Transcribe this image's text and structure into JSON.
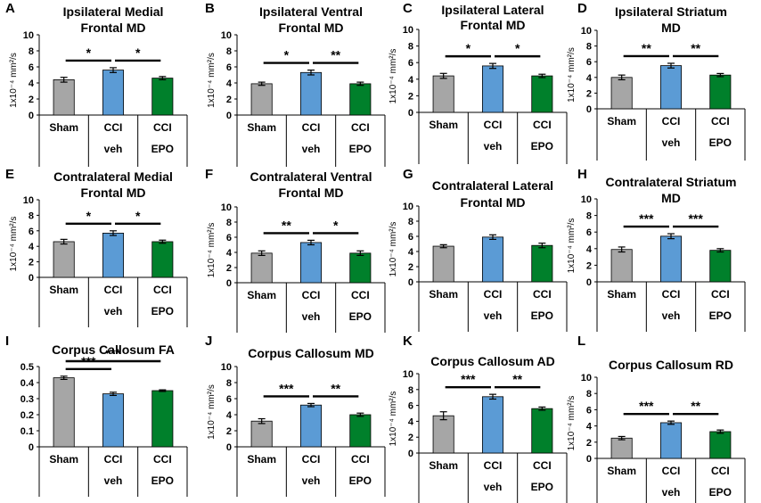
{
  "figure": {
    "colors": {
      "Sham": "#a6a6a6",
      "CCI veh": "#5b9bd5",
      "CCI EPO": "#00802b"
    },
    "panels": [
      {
        "letter": "A",
        "title_lines": [
          "Ipsilateral Medial",
          "Frontal  MD"
        ],
        "ylabel": "1x10⁻⁴ mm²/s",
        "ylim": [
          0,
          10
        ],
        "yticks": [
          0,
          2,
          4,
          6,
          8,
          10
        ],
        "categories": [
          [
            "Sham"
          ],
          [
            "CCI",
            "veh"
          ],
          [
            "CCI",
            "EPO"
          ]
        ],
        "values": [
          4.4,
          5.6,
          4.6
        ],
        "errors": [
          0.3,
          0.3,
          0.2
        ],
        "sig": [
          {
            "from": 0,
            "to": 1,
            "label": "*",
            "level": 1
          },
          {
            "from": 1,
            "to": 2,
            "label": "*",
            "level": 1
          }
        ]
      },
      {
        "letter": "B",
        "title_lines": [
          "Ipsilateral Ventral",
          "Frontal  MD"
        ],
        "ylabel": "1x10⁻⁴ mm²/s",
        "ylim": [
          0,
          10
        ],
        "yticks": [
          0,
          2,
          4,
          6,
          8,
          10
        ],
        "categories": [
          [
            "Sham"
          ],
          [
            "CCI",
            "veh"
          ],
          [
            "CCI",
            "EPO"
          ]
        ],
        "values": [
          3.9,
          5.3,
          3.9
        ],
        "errors": [
          0.2,
          0.3,
          0.2
        ],
        "sig": [
          {
            "from": 0,
            "to": 1,
            "label": "*",
            "level": 1
          },
          {
            "from": 1,
            "to": 2,
            "label": "**",
            "level": 1
          }
        ]
      },
      {
        "letter": "C",
        "title_lines": [
          "Ipsilateral Lateral",
          "Frontal MD"
        ],
        "ylabel": "1x10⁻⁴ mm²/s",
        "ylim": [
          0,
          10
        ],
        "yticks": [
          0,
          2,
          4,
          6,
          8,
          10
        ],
        "categories": [
          [
            "Sham"
          ],
          [
            "CCI",
            "veh"
          ],
          [
            "CCI",
            "EPO"
          ]
        ],
        "values": [
          4.4,
          5.6,
          4.4
        ],
        "errors": [
          0.3,
          0.3,
          0.2
        ],
        "sig": [
          {
            "from": 0,
            "to": 1,
            "label": "*",
            "level": 1
          },
          {
            "from": 1,
            "to": 2,
            "label": "*",
            "level": 1
          }
        ]
      },
      {
        "letter": "D",
        "title_lines": [
          "Ipsilateral Striatum",
          "MD"
        ],
        "ylabel": "1x10⁻⁴ mm²/s",
        "ylim": [
          0,
          10
        ],
        "yticks": [
          0,
          2,
          4,
          6,
          8,
          10
        ],
        "categories": [
          [
            "Sham"
          ],
          [
            "CCI",
            "veh"
          ],
          [
            "CCI",
            "EPO"
          ]
        ],
        "values": [
          4.0,
          5.5,
          4.3
        ],
        "errors": [
          0.3,
          0.3,
          0.2
        ],
        "sig": [
          {
            "from": 0,
            "to": 1,
            "label": "**",
            "level": 1
          },
          {
            "from": 1,
            "to": 2,
            "label": "**",
            "level": 1
          }
        ]
      },
      {
        "letter": "E",
        "title_lines": [
          "Contralateral Medial",
          "Frontal  MD"
        ],
        "ylabel": "1x10⁻⁴ mm²/s",
        "ylim": [
          0,
          10
        ],
        "yticks": [
          0,
          2,
          4,
          6,
          8,
          10
        ],
        "categories": [
          [
            "Sham"
          ],
          [
            "CCI",
            "veh"
          ],
          [
            "CCI",
            "EPO"
          ]
        ],
        "values": [
          4.6,
          5.7,
          4.6
        ],
        "errors": [
          0.3,
          0.3,
          0.2
        ],
        "sig": [
          {
            "from": 0,
            "to": 1,
            "label": "*",
            "level": 1
          },
          {
            "from": 1,
            "to": 2,
            "label": "*",
            "level": 1
          }
        ]
      },
      {
        "letter": "F",
        "title_lines": [
          "Contralateral Ventral",
          "Frontal  MD"
        ],
        "ylabel": "1x10⁻⁴ mm²/s",
        "ylim": [
          0,
          10
        ],
        "yticks": [
          0,
          2,
          4,
          6,
          8,
          10
        ],
        "categories": [
          [
            "Sham"
          ],
          [
            "CCI",
            "veh"
          ],
          [
            "CCI",
            "EPO"
          ]
        ],
        "values": [
          3.9,
          5.3,
          3.9
        ],
        "errors": [
          0.3,
          0.3,
          0.3
        ],
        "sig": [
          {
            "from": 0,
            "to": 1,
            "label": "**",
            "level": 1
          },
          {
            "from": 1,
            "to": 2,
            "label": "*",
            "level": 1
          }
        ]
      },
      {
        "letter": "G",
        "title_lines": [
          "Contralateral Lateral",
          "Frontal  MD"
        ],
        "ylabel": "1x10⁻⁴ mm²/s",
        "ylim": [
          0,
          10
        ],
        "yticks": [
          0,
          2,
          4,
          6,
          8,
          10
        ],
        "categories": [
          [
            "Sham"
          ],
          [
            "CCI",
            "veh"
          ],
          [
            "CCI",
            "EPO"
          ]
        ],
        "values": [
          4.7,
          5.9,
          4.8
        ],
        "errors": [
          0.2,
          0.3,
          0.3
        ],
        "sig": []
      },
      {
        "letter": "H",
        "title_lines": [
          "Contralateral Striatum",
          "MD"
        ],
        "ylabel": "1x10⁻⁴ mm²/s",
        "ylim": [
          0,
          10
        ],
        "yticks": [
          0,
          2,
          4,
          6,
          8,
          10
        ],
        "categories": [
          [
            "Sham"
          ],
          [
            "CCI",
            "veh"
          ],
          [
            "CCI",
            "EPO"
          ]
        ],
        "values": [
          3.9,
          5.5,
          3.8
        ],
        "errors": [
          0.3,
          0.3,
          0.2
        ],
        "sig": [
          {
            "from": 0,
            "to": 1,
            "label": "***",
            "level": 1
          },
          {
            "from": 1,
            "to": 2,
            "label": "***",
            "level": 1
          }
        ]
      },
      {
        "letter": "I",
        "title_lines": [
          "Corpus Callosum FA"
        ],
        "ylabel": "",
        "ylim": [
          0,
          0.5
        ],
        "yticks": [
          "0",
          "0.1",
          "0.2",
          "0.3",
          "0.4",
          "0.5"
        ],
        "categories": [
          [
            "Sham"
          ],
          [
            "CCI",
            "veh"
          ],
          [
            "CCI",
            "EPO"
          ]
        ],
        "values": [
          0.43,
          0.33,
          0.35
        ],
        "errors": [
          0.01,
          0.01,
          0.005
        ],
        "sig": [
          {
            "from": 0,
            "to": 1,
            "label": "***",
            "level": 1
          },
          {
            "from": 0,
            "to": 2,
            "label": "***",
            "level": 2
          }
        ]
      },
      {
        "letter": "J",
        "title_lines": [
          "Corpus Callosum MD"
        ],
        "ylabel": "1x10⁻⁴ mm²/s",
        "ylim": [
          0,
          10
        ],
        "yticks": [
          0,
          2,
          4,
          6,
          8,
          10
        ],
        "categories": [
          [
            "Sham"
          ],
          [
            "CCI",
            "veh"
          ],
          [
            "CCI",
            "EPO"
          ]
        ],
        "values": [
          3.2,
          5.2,
          4.0
        ],
        "errors": [
          0.3,
          0.2,
          0.2
        ],
        "sig": [
          {
            "from": 0,
            "to": 1,
            "label": "***",
            "level": 1
          },
          {
            "from": 1,
            "to": 2,
            "label": "**",
            "level": 1
          }
        ]
      },
      {
        "letter": "K",
        "title_lines": [
          "Corpus Callosum  AD"
        ],
        "ylabel": "1x10⁻⁴ mm²/s",
        "ylim": [
          0,
          10
        ],
        "yticks": [
          0,
          2,
          4,
          6,
          8,
          10
        ],
        "categories": [
          [
            "Sham"
          ],
          [
            "CCI",
            "veh"
          ],
          [
            "CCI",
            "EPO"
          ]
        ],
        "values": [
          4.7,
          7.1,
          5.6
        ],
        "errors": [
          0.5,
          0.3,
          0.2
        ],
        "sig": [
          {
            "from": 0,
            "to": 1,
            "label": "***",
            "level": 1
          },
          {
            "from": 1,
            "to": 2,
            "label": "**",
            "level": 1
          }
        ]
      },
      {
        "letter": "L",
        "title_lines": [
          "Corpus Callosum RD"
        ],
        "ylabel": "1x10⁻⁴ mm²/s",
        "ylim": [
          0,
          10
        ],
        "yticks": [
          0,
          2,
          4,
          6,
          8,
          10
        ],
        "categories": [
          [
            "Sham"
          ],
          [
            "CCI",
            "veh"
          ],
          [
            "CCI",
            "EPO"
          ]
        ],
        "values": [
          2.5,
          4.4,
          3.3
        ],
        "errors": [
          0.2,
          0.2,
          0.2
        ],
        "sig": [
          {
            "from": 0,
            "to": 1,
            "label": "***",
            "level": 1
          },
          {
            "from": 1,
            "to": 2,
            "label": "**",
            "level": 1
          }
        ]
      }
    ]
  },
  "chart_data": [
    {
      "type": "bar",
      "panel": "A",
      "title": "Ipsilateral Medial Frontal  MD",
      "ylabel": "1x10⁻⁴ mm²/s",
      "ylim": [
        0,
        10
      ],
      "categories": [
        "Sham",
        "CCI veh",
        "CCI EPO"
      ],
      "values": [
        4.4,
        5.6,
        4.6
      ]
    },
    {
      "type": "bar",
      "panel": "B",
      "title": "Ipsilateral Ventral Frontal  MD",
      "ylabel": "1x10⁻⁴ mm²/s",
      "ylim": [
        0,
        10
      ],
      "categories": [
        "Sham",
        "CCI veh",
        "CCI EPO"
      ],
      "values": [
        3.9,
        5.3,
        3.9
      ]
    },
    {
      "type": "bar",
      "panel": "C",
      "title": "Ipsilateral Lateral Frontal MD",
      "ylabel": "1x10⁻⁴ mm²/s",
      "ylim": [
        0,
        10
      ],
      "categories": [
        "Sham",
        "CCI veh",
        "CCI EPO"
      ],
      "values": [
        4.4,
        5.6,
        4.4
      ]
    },
    {
      "type": "bar",
      "panel": "D",
      "title": "Ipsilateral Striatum MD",
      "ylabel": "1x10⁻⁴ mm²/s",
      "ylim": [
        0,
        10
      ],
      "categories": [
        "Sham",
        "CCI veh",
        "CCI EPO"
      ],
      "values": [
        4.0,
        5.5,
        4.3
      ]
    },
    {
      "type": "bar",
      "panel": "E",
      "title": "Contralateral Medial Frontal  MD",
      "ylabel": "1x10⁻⁴ mm²/s",
      "ylim": [
        0,
        10
      ],
      "categories": [
        "Sham",
        "CCI veh",
        "CCI EPO"
      ],
      "values": [
        4.6,
        5.7,
        4.6
      ]
    },
    {
      "type": "bar",
      "panel": "F",
      "title": "Contralateral Ventral Frontal  MD",
      "ylabel": "1x10⁻⁴ mm²/s",
      "ylim": [
        0,
        10
      ],
      "categories": [
        "Sham",
        "CCI veh",
        "CCI EPO"
      ],
      "values": [
        3.9,
        5.3,
        3.9
      ]
    },
    {
      "type": "bar",
      "panel": "G",
      "title": "Contralateral Lateral Frontal  MD",
      "ylabel": "1x10⁻⁴ mm²/s",
      "ylim": [
        0,
        10
      ],
      "categories": [
        "Sham",
        "CCI veh",
        "CCI EPO"
      ],
      "values": [
        4.7,
        5.9,
        4.8
      ]
    },
    {
      "type": "bar",
      "panel": "H",
      "title": "Contralateral Striatum MD",
      "ylabel": "1x10⁻⁴ mm²/s",
      "ylim": [
        0,
        10
      ],
      "categories": [
        "Sham",
        "CCI veh",
        "CCI EPO"
      ],
      "values": [
        3.9,
        5.5,
        3.8
      ]
    },
    {
      "type": "bar",
      "panel": "I",
      "title": "Corpus Callosum FA",
      "ylabel": "",
      "ylim": [
        0,
        0.5
      ],
      "categories": [
        "Sham",
        "CCI veh",
        "CCI EPO"
      ],
      "values": [
        0.43,
        0.33,
        0.35
      ]
    },
    {
      "type": "bar",
      "panel": "J",
      "title": "Corpus Callosum MD",
      "ylabel": "1x10⁻⁴ mm²/s",
      "ylim": [
        0,
        10
      ],
      "categories": [
        "Sham",
        "CCI veh",
        "CCI EPO"
      ],
      "values": [
        3.2,
        5.2,
        4.0
      ]
    },
    {
      "type": "bar",
      "panel": "K",
      "title": "Corpus Callosum  AD",
      "ylabel": "1x10⁻⁴ mm²/s",
      "ylim": [
        0,
        10
      ],
      "categories": [
        "Sham",
        "CCI veh",
        "CCI EPO"
      ],
      "values": [
        4.7,
        7.1,
        5.6
      ]
    },
    {
      "type": "bar",
      "panel": "L",
      "title": "Corpus Callosum RD",
      "ylabel": "1x10⁻⁴ mm²/s",
      "ylim": [
        0,
        10
      ],
      "categories": [
        "Sham",
        "CCI veh",
        "CCI EPO"
      ],
      "values": [
        2.5,
        4.4,
        3.3
      ]
    }
  ]
}
